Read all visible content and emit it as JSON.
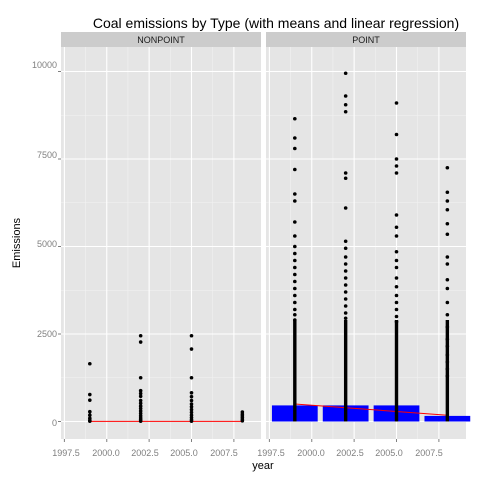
{
  "chart_data": {
    "type": "scatter",
    "title": "Coal emissions by Type (with means and linear regression)",
    "xlabel": "year",
    "ylabel": "Emissions",
    "xlim": [
      1997.3,
      2009.1
    ],
    "ylim": [
      -500,
      10700
    ],
    "x_ticks": [
      "1997.5",
      "2000.0",
      "2002.5",
      "2005.0",
      "2007.5"
    ],
    "y_ticks": [
      "0",
      "2500",
      "5000",
      "7500",
      "10000"
    ],
    "grid": true,
    "colors": {
      "points": "#000000",
      "mean_bars": "#0000ff",
      "regression_line": "#ff0000",
      "panel_bg": "#e5e5e5",
      "strip_bg": "#cccccc",
      "grid": "#ffffff"
    },
    "years": [
      1999,
      2002,
      2005,
      2008
    ],
    "panels": [
      {
        "label": "NONPOINT",
        "means": [],
        "regression": [
          [
            1999,
            5
          ],
          [
            2008,
            5
          ]
        ],
        "points": [
          [
            1999,
            1650
          ],
          [
            1999,
            770
          ],
          [
            1999,
            610
          ],
          [
            1999,
            280
          ],
          [
            1999,
            180
          ],
          [
            1999,
            90
          ],
          [
            1999,
            30
          ],
          [
            1999,
            10
          ],
          [
            2002,
            2450
          ],
          [
            2002,
            2270
          ],
          [
            2002,
            1250
          ],
          [
            2002,
            880
          ],
          [
            2002,
            800
          ],
          [
            2002,
            720
          ],
          [
            2002,
            600
          ],
          [
            2002,
            520
          ],
          [
            2002,
            440
          ],
          [
            2002,
            370
          ],
          [
            2002,
            300
          ],
          [
            2002,
            230
          ],
          [
            2002,
            160
          ],
          [
            2002,
            100
          ],
          [
            2002,
            50
          ],
          [
            2002,
            10
          ],
          [
            2005,
            2450
          ],
          [
            2005,
            2070
          ],
          [
            2005,
            1250
          ],
          [
            2005,
            820
          ],
          [
            2005,
            710
          ],
          [
            2005,
            600
          ],
          [
            2005,
            500
          ],
          [
            2005,
            420
          ],
          [
            2005,
            340
          ],
          [
            2005,
            260
          ],
          [
            2005,
            180
          ],
          [
            2005,
            110
          ],
          [
            2005,
            50
          ],
          [
            2005,
            10
          ],
          [
            2008,
            270
          ],
          [
            2008,
            210
          ],
          [
            2008,
            160
          ],
          [
            2008,
            110
          ],
          [
            2008,
            60
          ],
          [
            2008,
            20
          ]
        ]
      },
      {
        "label": "POINT",
        "means": [
          {
            "year": 1999,
            "value": 460
          },
          {
            "year": 2002,
            "value": 460
          },
          {
            "year": 2005,
            "value": 460
          },
          {
            "year": 2008,
            "value": 160
          }
        ],
        "regression": [
          [
            1999,
            500
          ],
          [
            2008,
            180
          ]
        ],
        "points": [
          [
            1999,
            8650
          ],
          [
            1999,
            8100
          ],
          [
            1999,
            7800
          ],
          [
            1999,
            7200
          ],
          [
            1999,
            6500
          ],
          [
            1999,
            6300
          ],
          [
            1999,
            5700
          ],
          [
            1999,
            5300
          ],
          [
            1999,
            5000
          ],
          [
            1999,
            4800
          ],
          [
            1999,
            4600
          ],
          [
            1999,
            4400
          ],
          [
            1999,
            4200
          ],
          [
            1999,
            4000
          ],
          [
            1999,
            3800
          ],
          [
            1999,
            3600
          ],
          [
            1999,
            3400
          ],
          [
            1999,
            3200
          ],
          [
            1999,
            3050
          ],
          [
            1999,
            2900
          ],
          [
            2002,
            9950
          ],
          [
            2002,
            9300
          ],
          [
            2002,
            9050
          ],
          [
            2002,
            8850
          ],
          [
            2002,
            7100
          ],
          [
            2002,
            6950
          ],
          [
            2002,
            6100
          ],
          [
            2002,
            5150
          ],
          [
            2002,
            4950
          ],
          [
            2002,
            4700
          ],
          [
            2002,
            4500
          ],
          [
            2002,
            4300
          ],
          [
            2002,
            4100
          ],
          [
            2002,
            3900
          ],
          [
            2002,
            3700
          ],
          [
            2002,
            3500
          ],
          [
            2002,
            3300
          ],
          [
            2002,
            3100
          ],
          [
            2002,
            2950
          ],
          [
            2005,
            9100
          ],
          [
            2005,
            8200
          ],
          [
            2005,
            7500
          ],
          [
            2005,
            7300
          ],
          [
            2005,
            7100
          ],
          [
            2005,
            5900
          ],
          [
            2005,
            5550
          ],
          [
            2005,
            5300
          ],
          [
            2005,
            4850
          ],
          [
            2005,
            4600
          ],
          [
            2005,
            4400
          ],
          [
            2005,
            4100
          ],
          [
            2005,
            3850
          ],
          [
            2005,
            3600
          ],
          [
            2005,
            3400
          ],
          [
            2005,
            3200
          ],
          [
            2005,
            3000
          ],
          [
            2005,
            2850
          ],
          [
            2008,
            7250
          ],
          [
            2008,
            6550
          ],
          [
            2008,
            6300
          ],
          [
            2008,
            6050
          ],
          [
            2008,
            5650
          ],
          [
            2008,
            5350
          ],
          [
            2008,
            4700
          ],
          [
            2008,
            4500
          ],
          [
            2008,
            4050
          ],
          [
            2008,
            3800
          ],
          [
            2008,
            3400
          ],
          [
            2008,
            3050
          ],
          [
            2008,
            2700
          ],
          [
            2008,
            2350
          ],
          [
            2008,
            2150
          ],
          [
            2008,
            1900
          ],
          [
            2008,
            1700
          ],
          [
            2008,
            1500
          ],
          [
            2008,
            1300
          ]
        ]
      }
    ]
  }
}
